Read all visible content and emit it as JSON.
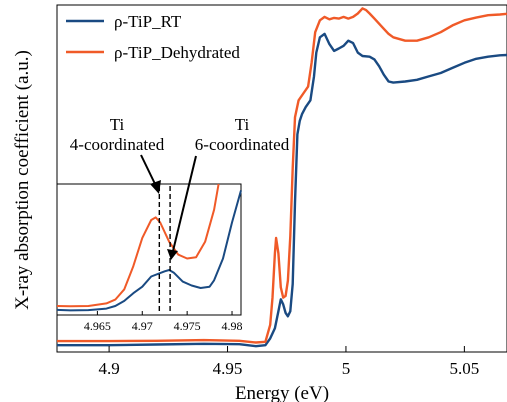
{
  "chart_data": {
    "type": "line",
    "xlabel": "Energy (eV)",
    "ylabel": "X-ray absorption coefficient (a.u.)",
    "xlim": [
      4.878,
      5.068
    ],
    "ylim": [
      0,
      1
    ],
    "x_ticks": [
      4.9,
      4.95,
      5.0,
      5.05
    ],
    "x_tick_labels": [
      "4.9",
      "4.95",
      "5",
      "5.05"
    ],
    "grid": false,
    "legend_position": "top-left",
    "colors": {
      "rt": "#1a4a82",
      "dehydrated": "#f05a28"
    },
    "series": [
      {
        "name": "ρ-TiP_RT",
        "color": "#1a4a82",
        "points": [
          [
            4.878,
            0.0
          ],
          [
            4.9,
            0.0
          ],
          [
            4.92,
            0.002
          ],
          [
            4.94,
            0.004
          ],
          [
            4.955,
            0.003
          ],
          [
            4.962,
            -0.003
          ],
          [
            4.966,
            0.0
          ],
          [
            4.968,
            0.02
          ],
          [
            4.97,
            0.05
          ],
          [
            4.9715,
            0.1
          ],
          [
            4.9725,
            0.135
          ],
          [
            4.9735,
            0.12
          ],
          [
            4.9745,
            0.095
          ],
          [
            4.9755,
            0.085
          ],
          [
            4.9765,
            0.1
          ],
          [
            4.9775,
            0.18
          ],
          [
            4.9785,
            0.42
          ],
          [
            4.9795,
            0.62
          ],
          [
            4.9805,
            0.66
          ],
          [
            4.9815,
            0.68
          ],
          [
            4.983,
            0.7
          ],
          [
            4.985,
            0.72
          ],
          [
            4.9865,
            0.79
          ],
          [
            4.9875,
            0.86
          ],
          [
            4.989,
            0.905
          ],
          [
            4.991,
            0.915
          ],
          [
            4.993,
            0.885
          ],
          [
            4.995,
            0.865
          ],
          [
            4.997,
            0.872
          ],
          [
            4.999,
            0.88
          ],
          [
            5.001,
            0.895
          ],
          [
            5.003,
            0.888
          ],
          [
            5.005,
            0.86
          ],
          [
            5.007,
            0.85
          ],
          [
            5.01,
            0.848
          ],
          [
            5.012,
            0.84
          ],
          [
            5.014,
            0.82
          ],
          [
            5.016,
            0.795
          ],
          [
            5.018,
            0.775
          ],
          [
            5.02,
            0.772
          ],
          [
            5.025,
            0.775
          ],
          [
            5.03,
            0.78
          ],
          [
            5.035,
            0.79
          ],
          [
            5.04,
            0.8
          ],
          [
            5.045,
            0.815
          ],
          [
            5.05,
            0.83
          ],
          [
            5.055,
            0.842
          ],
          [
            5.06,
            0.848
          ],
          [
            5.065,
            0.852
          ],
          [
            5.068,
            0.853
          ]
        ]
      },
      {
        "name": "ρ-TiP_Dehydrated",
        "color": "#f05a28",
        "points": [
          [
            4.878,
            0.012
          ],
          [
            4.9,
            0.012
          ],
          [
            4.92,
            0.013
          ],
          [
            4.94,
            0.015
          ],
          [
            4.955,
            0.013
          ],
          [
            4.962,
            0.008
          ],
          [
            4.966,
            0.01
          ],
          [
            4.968,
            0.06
          ],
          [
            4.969,
            0.14
          ],
          [
            4.97,
            0.27
          ],
          [
            4.9705,
            0.315
          ],
          [
            4.9715,
            0.27
          ],
          [
            4.9725,
            0.17
          ],
          [
            4.9735,
            0.14
          ],
          [
            4.9745,
            0.145
          ],
          [
            4.9755,
            0.19
          ],
          [
            4.9765,
            0.32
          ],
          [
            4.9775,
            0.52
          ],
          [
            4.9785,
            0.67
          ],
          [
            4.98,
            0.72
          ],
          [
            4.982,
            0.74
          ],
          [
            4.984,
            0.76
          ],
          [
            4.9855,
            0.83
          ],
          [
            4.987,
            0.92
          ],
          [
            4.989,
            0.955
          ],
          [
            4.991,
            0.965
          ],
          [
            4.993,
            0.958
          ],
          [
            4.995,
            0.962
          ],
          [
            4.997,
            0.96
          ],
          [
            4.999,
            0.965
          ],
          [
            5.001,
            0.96
          ],
          [
            5.003,
            0.965
          ],
          [
            5.005,
            0.975
          ],
          [
            5.007,
            0.99
          ],
          [
            5.0085,
            0.985
          ],
          [
            5.01,
            0.975
          ],
          [
            5.012,
            0.96
          ],
          [
            5.014,
            0.945
          ],
          [
            5.016,
            0.93
          ],
          [
            5.018,
            0.915
          ],
          [
            5.02,
            0.905
          ],
          [
            5.025,
            0.895
          ],
          [
            5.03,
            0.895
          ],
          [
            5.035,
            0.905
          ],
          [
            5.04,
            0.92
          ],
          [
            5.045,
            0.94
          ],
          [
            5.05,
            0.955
          ],
          [
            5.055,
            0.963
          ],
          [
            5.06,
            0.97
          ],
          [
            5.065,
            0.972
          ],
          [
            5.068,
            0.974
          ]
        ]
      }
    ],
    "inset": {
      "xlim": [
        4.9605,
        4.981
      ],
      "ylim": [
        0,
        1
      ],
      "x_ticks": [
        4.965,
        4.97,
        4.975,
        4.98
      ],
      "x_tick_labels": [
        "4.965",
        "4.97",
        "4.975",
        "4.98"
      ],
      "series": [
        {
          "name": "ρ-TiP_RT",
          "color": "#1a4a82",
          "points": [
            [
              4.9605,
              0.02
            ],
            [
              4.962,
              0.016
            ],
            [
              4.964,
              0.018
            ],
            [
              4.966,
              0.03
            ],
            [
              4.967,
              0.05
            ],
            [
              4.968,
              0.09
            ],
            [
              4.969,
              0.15
            ],
            [
              4.97,
              0.2
            ],
            [
              4.971,
              0.28
            ],
            [
              4.9725,
              0.32
            ],
            [
              4.973,
              0.33
            ],
            [
              4.9735,
              0.31
            ],
            [
              4.9745,
              0.24
            ],
            [
              4.9755,
              0.21
            ],
            [
              4.9765,
              0.19
            ],
            [
              4.9775,
              0.2
            ],
            [
              4.978,
              0.25
            ],
            [
              4.979,
              0.42
            ],
            [
              4.98,
              0.7
            ],
            [
              4.981,
              0.95
            ]
          ]
        },
        {
          "name": "ρ-TiP_Dehydrated",
          "color": "#f05a28",
          "points": [
            [
              4.9605,
              0.05
            ],
            [
              4.962,
              0.048
            ],
            [
              4.964,
              0.05
            ],
            [
              4.966,
              0.07
            ],
            [
              4.967,
              0.1
            ],
            [
              4.968,
              0.18
            ],
            [
              4.969,
              0.36
            ],
            [
              4.97,
              0.58
            ],
            [
              4.971,
              0.72
            ],
            [
              4.9715,
              0.74
            ],
            [
              4.972,
              0.7
            ],
            [
              4.973,
              0.55
            ],
            [
              4.974,
              0.45
            ],
            [
              4.975,
              0.42
            ],
            [
              4.976,
              0.43
            ],
            [
              4.977,
              0.55
            ],
            [
              4.978,
              0.8
            ],
            [
              4.978,
              0.8
            ],
            [
              4.9785,
              1.0
            ]
          ]
        }
      ],
      "markers": [
        4.9719,
        4.9731
      ]
    },
    "annotations": [
      {
        "id": "ti4",
        "lines": [
          "Ti",
          "4-coordinated"
        ]
      },
      {
        "id": "ti6",
        "lines": [
          "Ti",
          "6-coordinated"
        ]
      }
    ]
  }
}
